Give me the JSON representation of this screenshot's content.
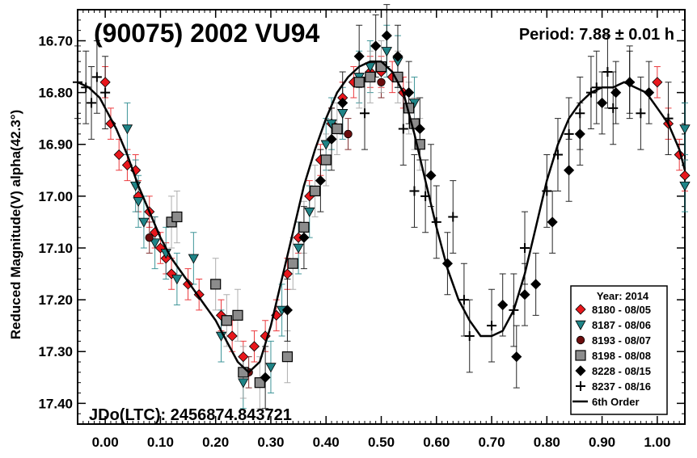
{
  "chart_data": {
    "type": "scatter",
    "title": "(90075) 2002 VU94",
    "period_label": "Period: 7.88 ± 0.01 h",
    "jdo_label": "JDo(LTC): 2456874.843721",
    "xlabel": "",
    "ylabel": "Reduced Magnitude(V) alpha(42.3°)",
    "xlim": [
      -0.05,
      1.05
    ],
    "ylim": [
      17.44,
      16.64
    ],
    "y_inverted": true,
    "grid": false,
    "xticks": [
      "0.00",
      "0.10",
      "0.20",
      "0.30",
      "0.40",
      "0.50",
      "0.60",
      "0.70",
      "0.80",
      "0.90",
      "1.00"
    ],
    "yticks": [
      "16.70",
      "16.80",
      "16.90",
      "17.00",
      "17.10",
      "17.20",
      "17.30",
      "17.40"
    ],
    "legend_title": "Year: 2014",
    "legend_position": "bottom-right",
    "series": [
      {
        "name": "8180 - 08/05",
        "marker": "diamond",
        "color": "#e8171c",
        "points": [
          [
            0.0,
            16.78
          ],
          [
            0.01,
            16.86
          ],
          [
            0.025,
            16.92
          ],
          [
            0.04,
            16.94
          ],
          [
            0.055,
            16.95
          ],
          [
            0.06,
            17.0
          ],
          [
            0.08,
            17.03
          ],
          [
            0.09,
            17.07
          ],
          [
            0.1,
            17.1
          ],
          [
            0.11,
            17.12
          ],
          [
            0.12,
            17.15
          ],
          [
            0.15,
            17.17
          ],
          [
            0.17,
            17.19
          ],
          [
            0.21,
            17.23
          ],
          [
            0.23,
            17.27
          ],
          [
            0.25,
            17.31
          ],
          [
            0.27,
            17.29
          ],
          [
            0.29,
            17.27
          ],
          [
            0.31,
            17.23
          ],
          [
            0.33,
            17.15
          ],
          [
            0.35,
            17.08
          ],
          [
            0.37,
            17.0
          ],
          [
            0.39,
            16.93
          ],
          [
            0.41,
            16.86
          ],
          [
            0.43,
            16.81
          ],
          [
            0.45,
            16.78
          ],
          [
            0.48,
            16.76
          ],
          [
            0.5,
            16.76
          ],
          [
            0.52,
            16.77
          ],
          [
            0.54,
            16.8
          ],
          [
            1.0,
            16.78
          ],
          [
            1.02,
            16.86
          ],
          [
            1.04,
            16.92
          ],
          [
            1.05,
            16.96
          ]
        ],
        "err": 0.03
      },
      {
        "name": "8187 - 08/06",
        "marker": "triangle",
        "color": "#1f8487",
        "points": [
          [
            0.04,
            16.87
          ],
          [
            0.055,
            16.98
          ],
          [
            0.06,
            17.01
          ],
          [
            0.07,
            17.05
          ],
          [
            0.09,
            17.09
          ],
          [
            0.11,
            17.11
          ],
          [
            0.13,
            17.16
          ],
          [
            0.16,
            17.12
          ],
          [
            0.21,
            17.27
          ],
          [
            0.25,
            17.36
          ],
          [
            0.3,
            17.33
          ],
          [
            0.32,
            17.22
          ],
          [
            0.35,
            17.1
          ],
          [
            0.37,
            17.03
          ],
          [
            0.4,
            16.9
          ],
          [
            0.41,
            16.86
          ],
          [
            0.43,
            16.84
          ],
          [
            0.46,
            16.77
          ],
          [
            0.48,
            16.75
          ],
          [
            0.51,
            16.72
          ],
          [
            0.53,
            16.74
          ],
          [
            0.56,
            16.82
          ],
          [
            1.05,
            16.87
          ],
          [
            1.05,
            16.98
          ]
        ],
        "err": 0.05
      },
      {
        "name": "8193 - 08/07",
        "marker": "circle",
        "color": "#6b0d0d",
        "points": [
          [
            0.08,
            17.08
          ],
          [
            0.26,
            17.34
          ],
          [
            0.44,
            16.88
          ],
          [
            0.5,
            16.78
          ]
        ],
        "err": 0.03
      },
      {
        "name": "8198 - 08/08",
        "marker": "square",
        "color": "#8c8c8c",
        "points": [
          [
            0.12,
            17.05
          ],
          [
            0.13,
            17.04
          ],
          [
            0.2,
            17.17
          ],
          [
            0.22,
            17.24
          ],
          [
            0.24,
            17.23
          ],
          [
            0.25,
            17.34
          ],
          [
            0.28,
            17.36
          ],
          [
            0.33,
            17.31
          ],
          [
            0.34,
            17.13
          ],
          [
            0.36,
            17.06
          ],
          [
            0.38,
            16.99
          ],
          [
            0.4,
            16.93
          ],
          [
            0.42,
            16.87
          ],
          [
            0.46,
            16.78
          ],
          [
            0.48,
            16.77
          ],
          [
            0.5,
            16.75
          ],
          [
            0.53,
            16.77
          ],
          [
            0.55,
            16.83
          ],
          [
            0.56,
            16.86
          ],
          [
            0.57,
            16.9
          ]
        ],
        "err": 0.05
      },
      {
        "name": "8228 - 08/15",
        "marker": "diamond",
        "color": "#000000",
        "points": [
          [
            0.29,
            17.35
          ],
          [
            0.33,
            17.22
          ],
          [
            0.36,
            17.08
          ],
          [
            0.39,
            16.97
          ],
          [
            0.41,
            16.89
          ],
          [
            0.43,
            16.82
          ],
          [
            0.46,
            16.73
          ],
          [
            0.49,
            16.71
          ],
          [
            0.51,
            16.69
          ],
          [
            0.53,
            16.73
          ],
          [
            0.55,
            16.8
          ],
          [
            0.57,
            16.87
          ],
          [
            0.59,
            16.96
          ],
          [
            0.62,
            17.13
          ],
          [
            0.72,
            17.21
          ],
          [
            0.745,
            17.31
          ],
          [
            0.76,
            17.19
          ],
          [
            0.78,
            17.17
          ],
          [
            0.81,
            17.05
          ],
          [
            0.84,
            16.95
          ],
          [
            0.86,
            16.88
          ],
          [
            0.9,
            16.82
          ],
          [
            0.925,
            16.8
          ],
          [
            0.95,
            16.78
          ],
          [
            0.985,
            16.8
          ]
        ],
        "err": 0.06
      },
      {
        "name": "8237 - 08/16",
        "marker": "plus",
        "color": "#000000",
        "points": [
          [
            -0.05,
            16.78
          ],
          [
            -0.035,
            16.79
          ],
          [
            -0.025,
            16.82
          ],
          [
            -0.015,
            16.77
          ],
          [
            0.0,
            16.8
          ],
          [
            0.47,
            16.84
          ],
          [
            0.54,
            16.87
          ],
          [
            0.56,
            16.99
          ],
          [
            0.58,
            17.0
          ],
          [
            0.6,
            17.05
          ],
          [
            0.63,
            17.04
          ],
          [
            0.65,
            17.2
          ],
          [
            0.66,
            17.27
          ],
          [
            0.7,
            17.25
          ],
          [
            0.74,
            17.22
          ],
          [
            0.76,
            17.1
          ],
          [
            0.8,
            16.99
          ],
          [
            0.82,
            16.92
          ],
          [
            0.84,
            16.88
          ],
          [
            0.86,
            16.84
          ],
          [
            0.88,
            16.8
          ],
          [
            0.89,
            16.79
          ],
          [
            0.91,
            16.76
          ],
          [
            0.92,
            16.83
          ],
          [
            0.95,
            16.78
          ],
          [
            0.97,
            16.84
          ],
          [
            1.02,
            16.85
          ]
        ],
        "err": 0.07
      }
    ],
    "fit": {
      "name": "6th Order",
      "points": [
        [
          -0.05,
          16.78
        ],
        [
          -0.03,
          16.79
        ],
        [
          -0.01,
          16.81
        ],
        [
          0.0,
          16.83
        ],
        [
          0.02,
          16.87
        ],
        [
          0.04,
          16.92
        ],
        [
          0.06,
          16.98
        ],
        [
          0.08,
          17.03
        ],
        [
          0.1,
          17.08
        ],
        [
          0.12,
          17.12
        ],
        [
          0.14,
          17.15
        ],
        [
          0.16,
          17.18
        ],
        [
          0.18,
          17.21
        ],
        [
          0.2,
          17.24
        ],
        [
          0.22,
          17.28
        ],
        [
          0.24,
          17.32
        ],
        [
          0.26,
          17.34
        ],
        [
          0.28,
          17.32
        ],
        [
          0.3,
          17.25
        ],
        [
          0.32,
          17.16
        ],
        [
          0.34,
          17.07
        ],
        [
          0.36,
          16.98
        ],
        [
          0.38,
          16.91
        ],
        [
          0.4,
          16.85
        ],
        [
          0.42,
          16.8
        ],
        [
          0.44,
          16.77
        ],
        [
          0.46,
          16.75
        ],
        [
          0.48,
          16.74
        ],
        [
          0.5,
          16.74
        ],
        [
          0.52,
          16.76
        ],
        [
          0.54,
          16.8
        ],
        [
          0.56,
          16.88
        ],
        [
          0.58,
          16.97
        ],
        [
          0.6,
          17.06
        ],
        [
          0.62,
          17.14
        ],
        [
          0.64,
          17.2
        ],
        [
          0.66,
          17.24
        ],
        [
          0.68,
          17.27
        ],
        [
          0.7,
          17.27
        ],
        [
          0.72,
          17.26
        ],
        [
          0.74,
          17.22
        ],
        [
          0.76,
          17.15
        ],
        [
          0.78,
          17.06
        ],
        [
          0.8,
          16.97
        ],
        [
          0.82,
          16.9
        ],
        [
          0.84,
          16.85
        ],
        [
          0.86,
          16.82
        ],
        [
          0.88,
          16.8
        ],
        [
          0.9,
          16.79
        ],
        [
          0.92,
          16.79
        ],
        [
          0.94,
          16.78
        ],
        [
          0.96,
          16.79
        ],
        [
          0.98,
          16.8
        ],
        [
          1.0,
          16.83
        ],
        [
          1.02,
          16.86
        ],
        [
          1.04,
          16.91
        ],
        [
          1.05,
          16.95
        ]
      ]
    }
  }
}
